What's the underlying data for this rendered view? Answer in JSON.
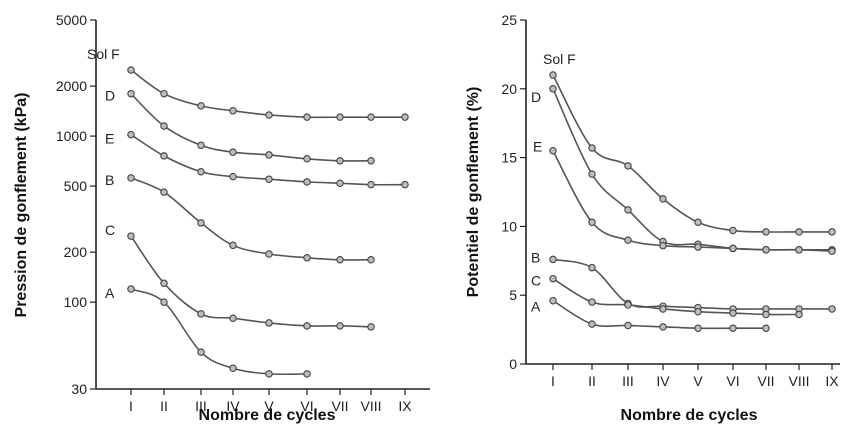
{
  "chart_data": [
    {
      "type": "line",
      "ylabel": "Pression de gonflement (kPa)",
      "xlabel": "Nombre de cycles",
      "x_categories": [
        "I",
        "II",
        "III",
        "IV",
        "V",
        "VI",
        "VII",
        "VIII",
        "IX"
      ],
      "yscale": "log",
      "ylim": [
        30,
        5000
      ],
      "yticks": [
        30,
        100,
        200,
        500,
        1000,
        2000,
        5000
      ],
      "grid": false,
      "series": [
        {
          "name": "Sol F",
          "values": [
            2500,
            1800,
            1520,
            1420,
            1340,
            1300,
            1300,
            1300,
            1300
          ]
        },
        {
          "name": "D",
          "values": [
            1800,
            1150,
            880,
            800,
            770,
            730,
            710,
            710,
            null
          ]
        },
        {
          "name": "E",
          "values": [
            1020,
            760,
            610,
            570,
            550,
            530,
            520,
            510,
            510
          ]
        },
        {
          "name": "B",
          "values": [
            560,
            460,
            300,
            220,
            195,
            185,
            180,
            180,
            null
          ]
        },
        {
          "name": "C",
          "values": [
            250,
            130,
            85,
            80,
            75,
            72,
            72,
            71,
            null
          ]
        },
        {
          "name": "A",
          "values": [
            120,
            100,
            50,
            40,
            37,
            37,
            null,
            null,
            null
          ]
        }
      ]
    },
    {
      "type": "line",
      "ylabel": "Potentiel de gonflement (%)",
      "xlabel": "Nombre de cycles",
      "x_categories": [
        "I",
        "II",
        "III",
        "IV",
        "V",
        "VI",
        "VII",
        "VIII",
        "IX"
      ],
      "yscale": "linear",
      "ylim": [
        0,
        25
      ],
      "yticks": [
        0,
        5,
        10,
        15,
        20,
        25
      ],
      "grid": false,
      "series": [
        {
          "name": "Sol F",
          "values": [
            21,
            15.7,
            14.4,
            12,
            10.3,
            9.7,
            9.6,
            9.6,
            9.6
          ]
        },
        {
          "name": "D",
          "values": [
            20,
            13.8,
            11.2,
            8.9,
            8.7,
            8.4,
            8.3,
            8.3,
            8.3
          ]
        },
        {
          "name": "E",
          "values": [
            15.5,
            10.3,
            9,
            8.6,
            8.5,
            8.4,
            8.3,
            8.3,
            8.2
          ]
        },
        {
          "name": "B",
          "values": [
            7.6,
            7,
            4.4,
            4.2,
            4.1,
            4,
            4,
            4,
            4
          ]
        },
        {
          "name": "C",
          "values": [
            6.2,
            4.5,
            4.3,
            4,
            3.8,
            3.7,
            3.6,
            3.6,
            null
          ]
        },
        {
          "name": "A",
          "values": [
            4.6,
            2.9,
            2.8,
            2.7,
            2.6,
            2.6,
            2.6,
            null,
            null
          ]
        }
      ]
    }
  ]
}
